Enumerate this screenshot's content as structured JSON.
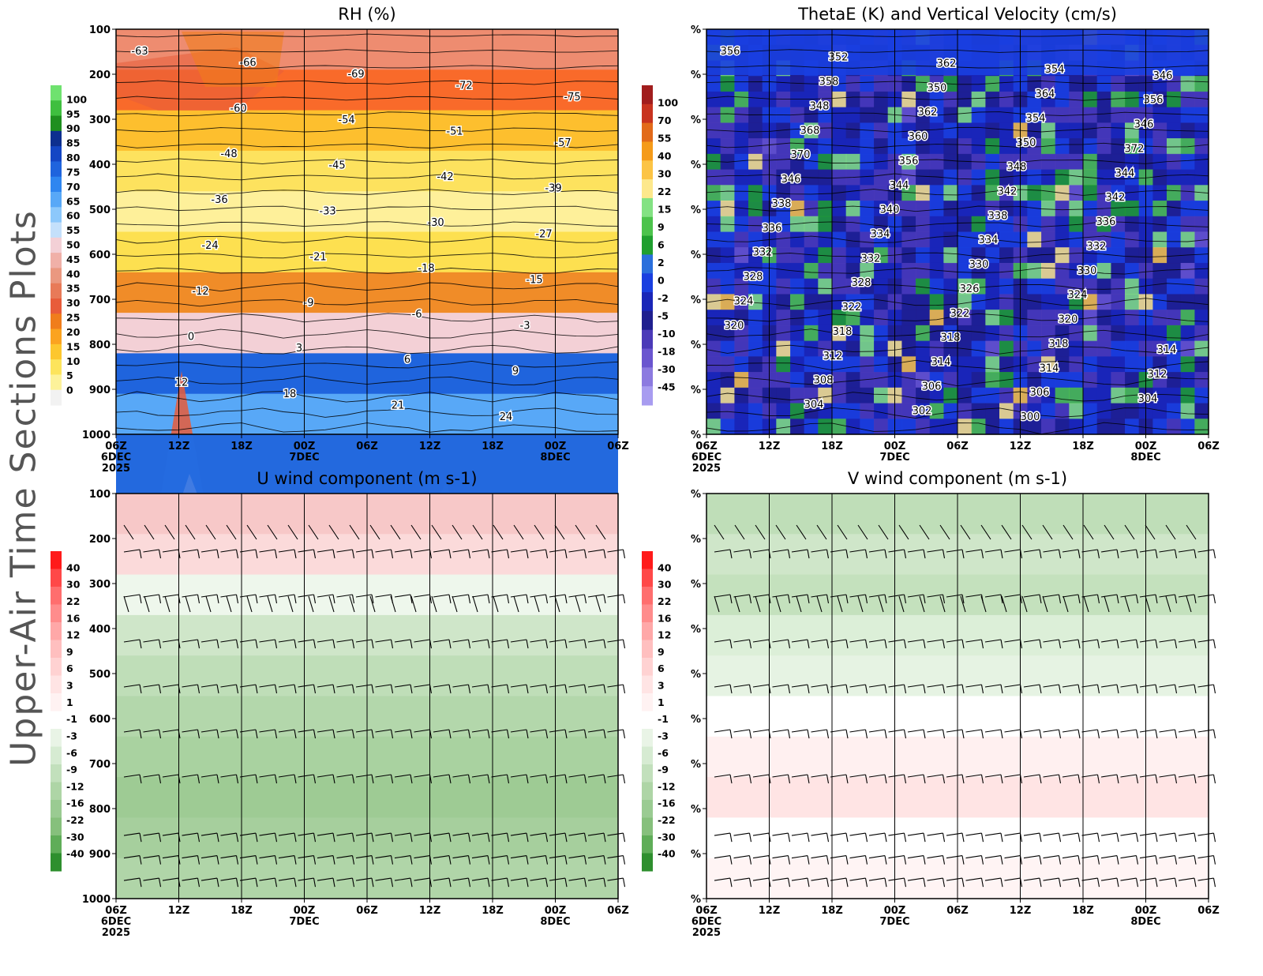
{
  "figure": {
    "side_title": "Upper-Air Time Sections Plots"
  },
  "colors": {
    "contour_line": "#000000",
    "frame": "#000000"
  },
  "chart_data": [
    {
      "id": "rh",
      "type": "heatmap",
      "title": "RH (%)",
      "xlabel": "",
      "ylabel": "",
      "x_ticks": [
        "06Z",
        "12Z",
        "18Z",
        "00Z",
        "06Z",
        "12Z",
        "18Z",
        "00Z",
        "06Z"
      ],
      "x_sub_labels": [
        [
          "6DEC",
          "2025"
        ],
        [],
        [],
        [
          "7DEC"
        ],
        [],
        [],
        [],
        [
          "8DEC"
        ],
        []
      ],
      "y_ticks": [
        "100",
        "200",
        "300",
        "400",
        "500",
        "600",
        "700",
        "800",
        "900",
        "1000"
      ],
      "colorbar": {
        "labels": [
          "100",
          "95",
          "90",
          "85",
          "80",
          "75",
          "70",
          "65",
          "60",
          "55",
          "50",
          "45",
          "40",
          "35",
          "30",
          "25",
          "20",
          "15",
          "10",
          "5",
          "0"
        ],
        "colors": [
          "#6fe26f",
          "#3fbf3f",
          "#1f8f1f",
          "#0d2f8f",
          "#1446c4",
          "#1f64dd",
          "#2f86f0",
          "#58a8f7",
          "#8cc8fb",
          "#c4e0fb",
          "#f3d0d6",
          "#f0b0a8",
          "#ea9880",
          "#e87a58",
          "#e85c3a",
          "#f07d1c",
          "#fba320",
          "#fdc72e",
          "#fde45c",
          "#fdf29a",
          "#f2f2f2"
        ]
      },
      "band_colors": [
        "#ee8c70",
        "#f96a2a",
        "#fdbf2e",
        "#fde25e",
        "#fef09a",
        "#fde050",
        "#f08c28",
        "#f3d0d6",
        "#1f64dd",
        "#58a8f7"
      ],
      "contour_labels": [
        "-63",
        "-66",
        "-69",
        "-72",
        "-75",
        "-60",
        "-54",
        "-51",
        "-57",
        "-48",
        "-45",
        "-42",
        "-39",
        "-36",
        "-33",
        "-30",
        "-27",
        "-24",
        "-21",
        "-18",
        "-15",
        "-12",
        "-9",
        "-6",
        "-3",
        "0",
        "3",
        "6",
        "9",
        "12",
        "18",
        "21",
        "24"
      ]
    },
    {
      "id": "thetae",
      "type": "heatmap",
      "title": "ThetaE (K) and Vertical Velocity (cm/s)",
      "xlabel": "",
      "ylabel": "",
      "x_ticks": [
        "06Z",
        "12Z",
        "18Z",
        "00Z",
        "06Z",
        "12Z",
        "18Z",
        "00Z",
        "06Z"
      ],
      "x_sub_labels": [
        [
          "6DEC",
          "2025"
        ],
        [],
        [],
        [
          "7DEC"
        ],
        [],
        [],
        [],
        [
          "8DEC"
        ],
        []
      ],
      "y_ticks": [
        "%",
        "%",
        "%",
        "%",
        "%",
        "%",
        "%",
        "%",
        "%",
        "%"
      ],
      "colorbar": {
        "labels": [
          "100",
          "70",
          "55",
          "40",
          "30",
          "22",
          "15",
          "9",
          "6",
          "2",
          "0",
          "-2",
          "-5",
          "-10",
          "-18",
          "-30",
          "-45"
        ],
        "colors": [
          "#a11d1d",
          "#c8331f",
          "#e26a1a",
          "#f59b1a",
          "#fcc445",
          "#fde88c",
          "#83e283",
          "#4cc34c",
          "#1f9f2f",
          "#2a6fdc",
          "#1a3fe0",
          "#1a26b8",
          "#1f1f8f",
          "#4b3ab8",
          "#6a55cf",
          "#8c7ae0",
          "#a89cf0"
        ]
      },
      "contour_labels": [
        "356",
        "352",
        "362",
        "354",
        "346",
        "358",
        "350",
        "364",
        "356",
        "348",
        "362",
        "354",
        "346",
        "368",
        "360",
        "350",
        "372",
        "370",
        "356",
        "348",
        "344",
        "346",
        "344",
        "342",
        "342",
        "338",
        "340",
        "338",
        "336",
        "336",
        "334",
        "334",
        "332",
        "332",
        "332",
        "330",
        "330",
        "328",
        "328",
        "326",
        "324",
        "324",
        "322",
        "322",
        "320",
        "320",
        "318",
        "318",
        "318",
        "314",
        "312",
        "314",
        "314",
        "312",
        "308",
        "306",
        "306",
        "304",
        "304",
        "302",
        "300"
      ]
    },
    {
      "id": "uwind",
      "type": "heatmap",
      "title": "U wind component (m s-1)",
      "xlabel": "",
      "ylabel": "",
      "x_ticks": [
        "06Z",
        "12Z",
        "18Z",
        "00Z",
        "06Z",
        "12Z",
        "18Z",
        "00Z",
        "06Z"
      ],
      "x_sub_labels": [
        [
          "6DEC",
          "2025"
        ],
        [],
        [],
        [
          "7DEC"
        ],
        [],
        [],
        [],
        [
          "8DEC"
        ],
        []
      ],
      "y_ticks": [
        "100",
        "200",
        "300",
        "400",
        "500",
        "600",
        "700",
        "800",
        "900",
        "1000"
      ],
      "colorbar": {
        "labels": [
          "40",
          "30",
          "22",
          "16",
          "12",
          "9",
          "6",
          "3",
          "1",
          "-1",
          "-3",
          "-6",
          "-9",
          "-12",
          "-16",
          "-22",
          "-30",
          "-40"
        ],
        "colors": [
          "#ff1a1a",
          "#ff4848",
          "#ff6e6e",
          "#ff8c8c",
          "#ffa8a8",
          "#ffbfbf",
          "#ffd2d2",
          "#ffe4e4",
          "#fff2f2",
          "#ffffff",
          "#e9f4e6",
          "#d6ebd2",
          "#c2e0bc",
          "#aed5a6",
          "#9acb92",
          "#86c07c",
          "#5fad58",
          "#2e8f2e"
        ]
      },
      "band_colors": [
        "#f7c8c8",
        "#fbdada",
        "#eef7ec",
        "#cfe6c9",
        "#bfdeb8",
        "#b3d7ab",
        "#a9d2a0",
        "#9ecb94",
        "#a6cf9d",
        "#b0d5a8"
      ]
    },
    {
      "id": "vwind",
      "type": "heatmap",
      "title": "V wind component (m s-1)",
      "xlabel": "",
      "ylabel": "",
      "x_ticks": [
        "06Z",
        "12Z",
        "18Z",
        "00Z",
        "06Z",
        "12Z",
        "18Z",
        "00Z",
        "06Z"
      ],
      "x_sub_labels": [
        [
          "6DEC",
          "2025"
        ],
        [],
        [],
        [
          "7DEC"
        ],
        [],
        [],
        [],
        [
          "8DEC"
        ],
        []
      ],
      "y_ticks": [
        "%",
        "%",
        "%",
        "%",
        "%",
        "%",
        "%",
        "%",
        "%",
        "%"
      ],
      "colorbar": {
        "labels": [
          "40",
          "30",
          "22",
          "16",
          "12",
          "9",
          "6",
          "3",
          "1",
          "-1",
          "-3",
          "-6",
          "-9",
          "-12",
          "-16",
          "-22",
          "-30",
          "-40"
        ],
        "colors": [
          "#ff1a1a",
          "#ff4848",
          "#ff6e6e",
          "#ff8c8c",
          "#ffa8a8",
          "#ffbfbf",
          "#ffd2d2",
          "#ffe4e4",
          "#fff2f2",
          "#ffffff",
          "#e9f4e6",
          "#d6ebd2",
          "#c2e0bc",
          "#aed5a6",
          "#9acb92",
          "#86c07c",
          "#5fad58",
          "#2e8f2e"
        ]
      },
      "band_colors": [
        "#bfdeb8",
        "#cfe6c9",
        "#c4e1bd",
        "#dcefd8",
        "#e6f3e3",
        "#ffffff",
        "#fff0f0",
        "#ffe4e4",
        "#ffffff",
        "#fff4f4"
      ]
    }
  ]
}
